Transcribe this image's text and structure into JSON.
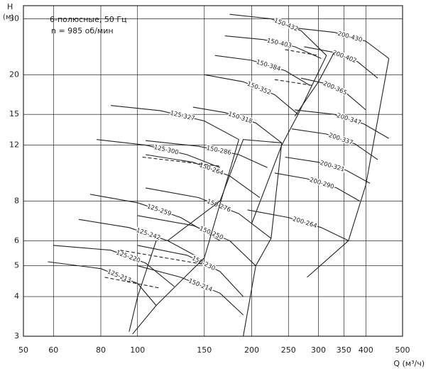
{
  "chart_data": {
    "type": "line",
    "log_x": true,
    "log_y": true,
    "grid": true,
    "x_label": "Q (м³/ч)",
    "y_label": [
      "H",
      "(м)"
    ],
    "annotations": [
      "6-полюсные, 50 Гц",
      "n = 985 об/мин"
    ],
    "xlim": [
      50,
      500
    ],
    "ylim": [
      3,
      33
    ],
    "xticks": [
      50,
      60,
      80,
      100,
      150,
      200,
      250,
      300,
      350,
      400,
      500
    ],
    "yticks": [
      3,
      4,
      5,
      6,
      8,
      12,
      15,
      20,
      30
    ],
    "color": "#222",
    "series": [
      {
        "name": "125-213",
        "x": [
          58,
          80,
          100,
          112
        ],
        "values": [
          5.15,
          4.9,
          4.4,
          3.75
        ]
      },
      {
        "name": "125-220",
        "x": [
          60,
          85,
          105,
          125
        ],
        "values": [
          5.8,
          5.6,
          5.1,
          4.3
        ]
      },
      {
        "name": "125-242",
        "x": [
          70,
          95,
          120,
          150
        ],
        "values": [
          7.0,
          6.6,
          6.0,
          5.2
        ]
      },
      {
        "name": "125-259",
        "x": [
          75,
          100,
          130,
          165
        ],
        "values": [
          8.4,
          7.9,
          7.1,
          6.0
        ]
      },
      {
        "name": "125-300",
        "x": [
          78,
          105,
          135,
          165
        ],
        "values": [
          12.5,
          12.0,
          11.2,
          10.2
        ]
      },
      {
        "name": "125-327",
        "x": [
          85,
          115,
          150,
          185
        ],
        "values": [
          16.0,
          15.4,
          14.3,
          12.5
        ]
      },
      {
        "name": "150-214",
        "x": [
          100,
          130,
          165,
          190
        ],
        "values": [
          5.0,
          4.6,
          4.1,
          3.5
        ]
      },
      {
        "name": "150-230",
        "x": [
          100,
          135,
          165,
          190
        ],
        "values": [
          5.8,
          5.4,
          4.8,
          4.0
        ]
      },
      {
        "name": "150-250",
        "x": [
          100,
          140,
          175,
          205
        ],
        "values": [
          7.2,
          6.7,
          6.0,
          5.0
        ]
      },
      {
        "name": "150-276",
        "x": [
          105,
          145,
          185,
          225
        ],
        "values": [
          8.8,
          8.2,
          7.3,
          6.1
        ]
      },
      {
        "name": "150-264",
        "x": [
          105,
          140,
          175,
          210
        ],
        "values": [
          11.2,
          10.6,
          9.6,
          8.2
        ]
      },
      {
        "name": "150-286",
        "x": [
          105,
          145,
          185,
          220
        ],
        "values": [
          12.4,
          11.9,
          11.2,
          10.2
        ]
      },
      {
        "name": "150-318",
        "x": [
          140,
          170,
          205,
          240
        ],
        "values": [
          15.8,
          15.2,
          14.1,
          12.2
        ]
      },
      {
        "name": "150-352",
        "x": [
          150,
          190,
          230,
          265
        ],
        "values": [
          20.0,
          19.0,
          17.3,
          15.0
        ]
      },
      {
        "name": "150-384",
        "x": [
          160,
          200,
          245,
          285
        ],
        "values": [
          23.0,
          22.2,
          20.6,
          18.5
        ]
      },
      {
        "name": "150-403",
        "x": [
          170,
          215,
          260,
          305
        ],
        "values": [
          26.5,
          25.8,
          24.5,
          22.5
        ]
      },
      {
        "name": "150-432",
        "x": [
          175,
          225,
          270,
          315
        ],
        "values": [
          31.0,
          30.0,
          27.5,
          23.0
        ]
      },
      {
        "name": "200-264",
        "x": [
          195,
          250,
          305,
          360
        ],
        "values": [
          7.5,
          7.1,
          6.6,
          6.0
        ]
      },
      {
        "name": "200-290",
        "x": [
          230,
          280,
          335,
          385
        ],
        "values": [
          9.8,
          9.4,
          8.8,
          8.0
        ]
      },
      {
        "name": "200-321",
        "x": [
          245,
          300,
          355,
          410
        ],
        "values": [
          11.0,
          10.6,
          10.0,
          9.1
        ]
      },
      {
        "name": "200-337",
        "x": [
          255,
          315,
          375,
          430
        ],
        "values": [
          13.5,
          13.0,
          12.1,
          10.8
        ]
      },
      {
        "name": "200-347",
        "x": [
          260,
          330,
          395,
          460
        ],
        "values": [
          15.5,
          15.0,
          14.0,
          12.6
        ]
      },
      {
        "name": "200-365",
        "x": [
          270,
          310,
          355,
          400
        ],
        "values": [
          19.5,
          18.8,
          17.5,
          15.5
        ]
      },
      {
        "name": "200-402",
        "x": [
          275,
          325,
          380,
          430
        ],
        "values": [
          24.5,
          23.6,
          22.0,
          19.5
        ]
      },
      {
        "name": "200-430",
        "x": [
          265,
          330,
          400,
          460
        ],
        "values": [
          28.0,
          27.2,
          25.5,
          22.5
        ]
      },
      {
        "x": [
          97,
          112,
          150,
          185
        ],
        "values": [
          3.05,
          3.75,
          5.3,
          12.5
        ]
      },
      {
        "x": [
          95,
          100,
          112,
          112
        ],
        "values": [
          3.1,
          4.0,
          6.0,
          6.0
        ]
      },
      {
        "x": [
          120,
          165,
          190,
          240
        ],
        "values": [
          6.0,
          8.0,
          12.5,
          12.2
        ]
      },
      {
        "x": [
          190,
          205,
          225,
          240
        ],
        "values": [
          3.0,
          5.0,
          6.1,
          12.2
        ]
      },
      {
        "x": [
          200,
          240,
          265,
          315
        ],
        "values": [
          6.8,
          12.0,
          15.0,
          23.0
        ]
      },
      {
        "x": [
          280,
          360,
          400,
          460
        ],
        "values": [
          4.6,
          6.0,
          9.0,
          22.5
        ]
      },
      {
        "x": [
          260,
          300,
          330
        ],
        "values": [
          14.8,
          19.0,
          23.5
        ]
      },
      {
        "dashed": true,
        "x": [
          82,
          115
        ],
        "values": [
          4.6,
          4.25
        ]
      },
      {
        "dashed": true,
        "x": [
          90,
          150
        ],
        "values": [
          5.6,
          5.05
        ]
      },
      {
        "dashed": true,
        "x": [
          103,
          165
        ],
        "values": [
          11.0,
          10.3
        ]
      },
      {
        "dashed": true,
        "x": [
          245,
          300
        ],
        "values": [
          24.0,
          23.0
        ]
      },
      {
        "dashed": true,
        "x": [
          230,
          290
        ],
        "values": [
          19.3,
          18.5
        ]
      }
    ]
  }
}
